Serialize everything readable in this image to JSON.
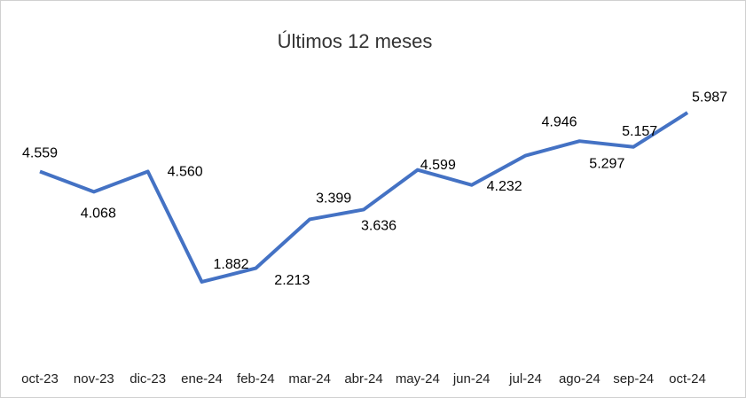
{
  "chart_data": {
    "type": "line",
    "title": "Últimos 12 meses",
    "categories": [
      "oct-23",
      "nov-23",
      "dic-23",
      "ene-24",
      "feb-24",
      "mar-24",
      "abr-24",
      "may-24",
      "jun-24",
      "jul-24",
      "ago-24",
      "sep-24",
      "oct-24"
    ],
    "values": [
      4.559,
      4.068,
      4.56,
      1.882,
      2.213,
      3.399,
      3.636,
      4.599,
      4.232,
      4.946,
      5.297,
      5.157,
      5.987
    ],
    "value_labels": [
      "4.559",
      "4.068",
      "4.560",
      "1.882",
      "2.213",
      "3.399",
      "3.636",
      "4.599",
      "4.232",
      "4.946",
      "5.297",
      "5.157",
      "5.987"
    ],
    "color": "#4472c4"
  }
}
